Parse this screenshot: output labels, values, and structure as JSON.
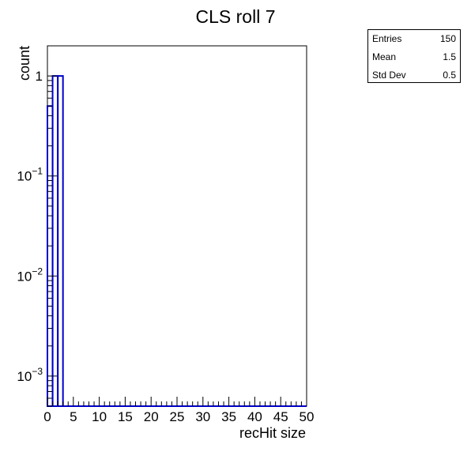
{
  "chart_data": {
    "type": "bar",
    "title": "CLS roll 7",
    "xlabel": "recHit size",
    "ylabel": "count",
    "xlim": [
      0,
      50
    ],
    "ylim": [
      0.0005,
      2
    ],
    "yscale": "log",
    "x_ticks": [
      "0",
      "5",
      "10",
      "15",
      "20",
      "25",
      "30",
      "35",
      "40",
      "45",
      "50"
    ],
    "y_ticks": [
      {
        "base": "10",
        "exp": "−3",
        "value": 0.001
      },
      {
        "base": "10",
        "exp": "−2",
        "value": 0.01
      },
      {
        "base": "10",
        "exp": "−1",
        "value": 0.1
      },
      {
        "base": "1",
        "exp": "",
        "value": 1
      }
    ],
    "bins": [
      {
        "x0": 0,
        "x1": 1,
        "value": 0.5
      },
      {
        "x0": 1,
        "x1": 2,
        "value": 1
      },
      {
        "x0": 2,
        "x1": 3,
        "value": 1
      },
      {
        "x0": 3,
        "x1": 50,
        "value": 0
      }
    ],
    "line_color": "#0000cc"
  },
  "stats": {
    "entries_label": "Entries",
    "entries_value": "150",
    "mean_label": "Mean",
    "mean_value": "1.5",
    "std_label": "Std Dev",
    "std_value": "0.5"
  }
}
